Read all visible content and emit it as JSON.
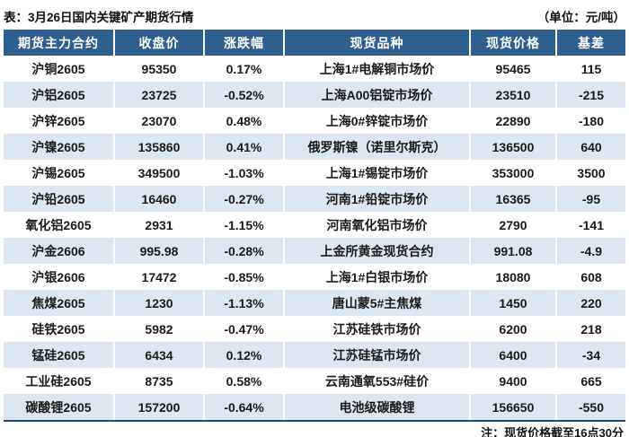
{
  "title_bar": {
    "title": "表：3月26日国内关键矿产期货行情",
    "unit": "（单位：元/吨）"
  },
  "footnote": "注：现货价格截至16点30分",
  "colors": {
    "header_bg": "#2f5f8f",
    "row_alt_bg": "#dce7f2",
    "positive_red": "#c5303e",
    "negative_green": "#739450",
    "bottom_border": "#1f4e79"
  },
  "chart_data": {
    "type": "table",
    "title": "表：3月26日国内关键矿产期货行情",
    "unit": "元/吨",
    "columns": [
      "期货主力合约",
      "收盘价",
      "涨跌幅",
      "现货品种",
      "现货价格",
      "基差"
    ],
    "rows": [
      [
        "沪铜2605",
        "95350",
        "0.17%",
        "上海1#电解铜市场价",
        "95465",
        "115"
      ],
      [
        "沪铝2605",
        "23725",
        "-0.52%",
        "上海A00铝锭市场价",
        "23510",
        "-215"
      ],
      [
        "沪锌2605",
        "23070",
        "0.48%",
        "上海0#锌锭市场价",
        "22890",
        "-180"
      ],
      [
        "沪镍2605",
        "135860",
        "0.41%",
        "俄罗斯镍（诺里尔斯克）",
        "136500",
        "640"
      ],
      [
        "沪锡2605",
        "349500",
        "-1.03%",
        "上海1#锡锭市场价",
        "353000",
        "3500"
      ],
      [
        "沪铅2605",
        "16460",
        "-0.27%",
        "河南1#铅锭市场价",
        "16365",
        "-95"
      ],
      [
        "氧化铝2605",
        "2931",
        "-1.15%",
        "河南氧化铝市场价",
        "2790",
        "-141"
      ],
      [
        "沪金2606",
        "995.98",
        "-0.28%",
        "上金所黄金现货合约",
        "991.08",
        "-4.9"
      ],
      [
        "沪银2606",
        "17472",
        "-0.85%",
        "上海1#白银市场价",
        "18080",
        "608"
      ],
      [
        "焦煤2605",
        "1230",
        "-1.13%",
        "唐山蒙5#主焦煤",
        "1450",
        "220"
      ],
      [
        "硅铁2605",
        "5982",
        "-0.47%",
        "江苏硅铁市场价",
        "6200",
        "218"
      ],
      [
        "锰硅2605",
        "6434",
        "0.12%",
        "江苏硅锰市场价",
        "6400",
        "-34"
      ],
      [
        "工业硅2605",
        "8735",
        "0.58%",
        "云南通氧553#硅价",
        "9400",
        "665"
      ],
      [
        "碳酸锂2605",
        "157200",
        "-0.64%",
        "电池级碳酸锂",
        "156650",
        "-550"
      ]
    ]
  }
}
